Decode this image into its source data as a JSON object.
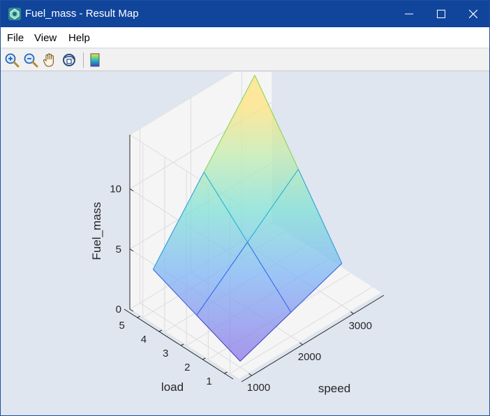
{
  "window": {
    "title": "Fuel_mass - Result Map",
    "icon": "matlab-figure-icon"
  },
  "menu": [
    {
      "label": "File"
    },
    {
      "label": "View"
    },
    {
      "label": "Help"
    }
  ],
  "toolbar": {
    "tools": [
      "zoom-in-icon",
      "zoom-out-icon",
      "pan-hand-icon",
      "rotate-3d-icon",
      "colorbar-icon"
    ]
  },
  "colors": {
    "titlebar": "#11459c",
    "plot_background": "#dfe6ef",
    "axes_background": "#f5f5f5"
  },
  "chart_data": {
    "type": "surface",
    "xlabel": "speed",
    "ylabel": "load",
    "zlabel": "Fuel_mass",
    "x": [
      1000,
      2000,
      3000
    ],
    "y": [
      1,
      3,
      5
    ],
    "z": [
      [
        0.5,
        2.0,
        3.5
      ],
      [
        2.0,
        5.5,
        9.0
      ],
      [
        3.5,
        9.0,
        14.5
      ]
    ],
    "x_ticks": [
      "1000",
      "2000",
      "3000"
    ],
    "y_ticks": [
      "1",
      "2",
      "3",
      "4",
      "5"
    ],
    "z_ticks": [
      "0",
      "5",
      "10"
    ],
    "xlim": [
      800,
      3600
    ],
    "ylim": [
      0.6,
      5.6
    ],
    "zlim": [
      0,
      14.5
    ],
    "grid": true,
    "colormap": "parula"
  }
}
